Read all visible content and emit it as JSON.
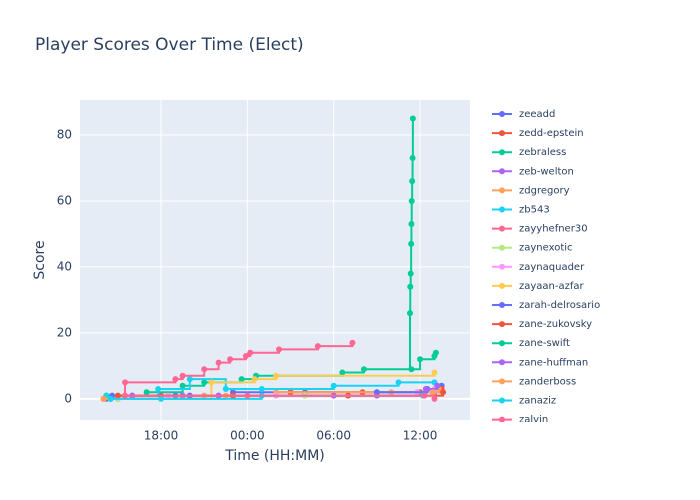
{
  "chart_data": {
    "type": "line",
    "line_shape": "hv",
    "title": "Player Scores Over Time (Elect)",
    "x_label": "Time (HH:MM)",
    "y_label": "Score",
    "xlim": [
      12.37,
      39.47
    ],
    "ylim": [
      -6.4,
      90.6
    ],
    "xticks": [
      {
        "value": 18,
        "label": "18:00"
      },
      {
        "value": 24,
        "label": "00:00"
      },
      {
        "value": 30,
        "label": "06:00"
      },
      {
        "value": 36,
        "label": "12:00"
      }
    ],
    "yticks": [
      0,
      20,
      40,
      60,
      80
    ],
    "grid": true,
    "legend": "right",
    "series": [
      {
        "name": "zeeadd",
        "color": "#636efa",
        "x": [
          14.2,
          16,
          19,
          23,
          28,
          33,
          36.5,
          37.5
        ],
        "values": [
          0,
          1,
          1,
          2,
          2,
          2,
          3,
          4
        ]
      },
      {
        "name": "zedd-epstein",
        "color": "#EF553B",
        "x": [
          14.5,
          18,
          23,
          27,
          32,
          36,
          37.5
        ],
        "values": [
          0,
          1,
          1,
          2,
          2,
          2,
          3
        ]
      },
      {
        "name": "zebraless",
        "color": "#00cc96",
        "x": [
          14.2,
          17,
          19.5,
          21,
          23.6,
          24.6,
          30.6,
          32.1,
          35.3,
          35.32,
          35.35,
          35.38,
          35.4,
          35.42,
          35.45,
          35.48,
          35.5
        ],
        "values": [
          1,
          2,
          4,
          5,
          6,
          7,
          8,
          9,
          26,
          34,
          38,
          47,
          53,
          60,
          66,
          73,
          85
        ]
      },
      {
        "name": "zeb-welton",
        "color": "#ab63fa",
        "x": [
          15,
          19.5,
          22,
          33,
          37
        ],
        "values": [
          0,
          1,
          1,
          1,
          2
        ]
      },
      {
        "name": "zdgregory",
        "color": "#FFA15A",
        "x": [
          14,
          21,
          26,
          34,
          37.3
        ],
        "values": [
          0,
          1,
          2,
          2,
          3
        ]
      },
      {
        "name": "zb543",
        "color": "#19d3f3",
        "x": [
          14.2,
          17.8,
          20,
          22.5,
          25,
          30,
          34.5,
          37
        ],
        "values": [
          1,
          3,
          6,
          3,
          3,
          4,
          5,
          5
        ]
      },
      {
        "name": "zayyhefner30",
        "color": "#FF6692",
        "x": [
          14,
          15.5,
          19,
          19.5,
          21,
          22,
          22.8,
          23.9,
          24.2,
          26.2,
          28.9,
          31.3
        ],
        "values": [
          0,
          5,
          6,
          7,
          9,
          11,
          12,
          13,
          14,
          15,
          16,
          17
        ]
      },
      {
        "name": "zaynexotic",
        "color": "#B6E880",
        "x": [
          15,
          20,
          28,
          36.8
        ],
        "values": [
          0,
          1,
          1,
          2
        ]
      },
      {
        "name": "zaynaquader",
        "color": "#FF97FF",
        "x": [
          14.5,
          18.5,
          26,
          35.8,
          37
        ],
        "values": [
          0,
          1,
          1,
          2,
          3
        ]
      },
      {
        "name": "zayaan-azfar",
        "color": "#FECB52",
        "x": [
          14,
          21.5,
          24.5,
          26,
          37
        ],
        "values": [
          0,
          5,
          6,
          7,
          8
        ]
      },
      {
        "name": "zarah-delrosario",
        "color": "#636efa",
        "x": [
          14.6,
          20,
          33,
          36.5
        ],
        "values": [
          1,
          1,
          2,
          3
        ]
      },
      {
        "name": "zane-zukovsky",
        "color": "#EF553B",
        "x": [
          15,
          23,
          31,
          37.6
        ],
        "values": [
          1,
          1,
          1,
          2
        ]
      },
      {
        "name": "zane-swift",
        "color": "#00cc96",
        "x": [
          35.4,
          36,
          37,
          37.1
        ],
        "values": [
          9,
          12,
          13,
          14
        ]
      },
      {
        "name": "zane-huffman",
        "color": "#ab63fa",
        "x": [
          16,
          22,
          30,
          36.4,
          37.2
        ],
        "values": [
          1,
          1,
          1,
          3,
          4
        ]
      },
      {
        "name": "zanderboss",
        "color": "#FFA15A",
        "x": [
          14,
          22.5,
          36.9
        ],
        "values": [
          0,
          1,
          2
        ]
      },
      {
        "name": "zanaziz",
        "color": "#19d3f3",
        "x": [
          14.5,
          18,
          25,
          36.2
        ],
        "values": [
          0,
          0,
          1,
          1
        ]
      },
      {
        "name": "zalvin",
        "color": "#FF6692",
        "x": [
          15.5,
          24,
          36.3,
          37
        ],
        "values": [
          1,
          1,
          1,
          0
        ]
      }
    ]
  }
}
